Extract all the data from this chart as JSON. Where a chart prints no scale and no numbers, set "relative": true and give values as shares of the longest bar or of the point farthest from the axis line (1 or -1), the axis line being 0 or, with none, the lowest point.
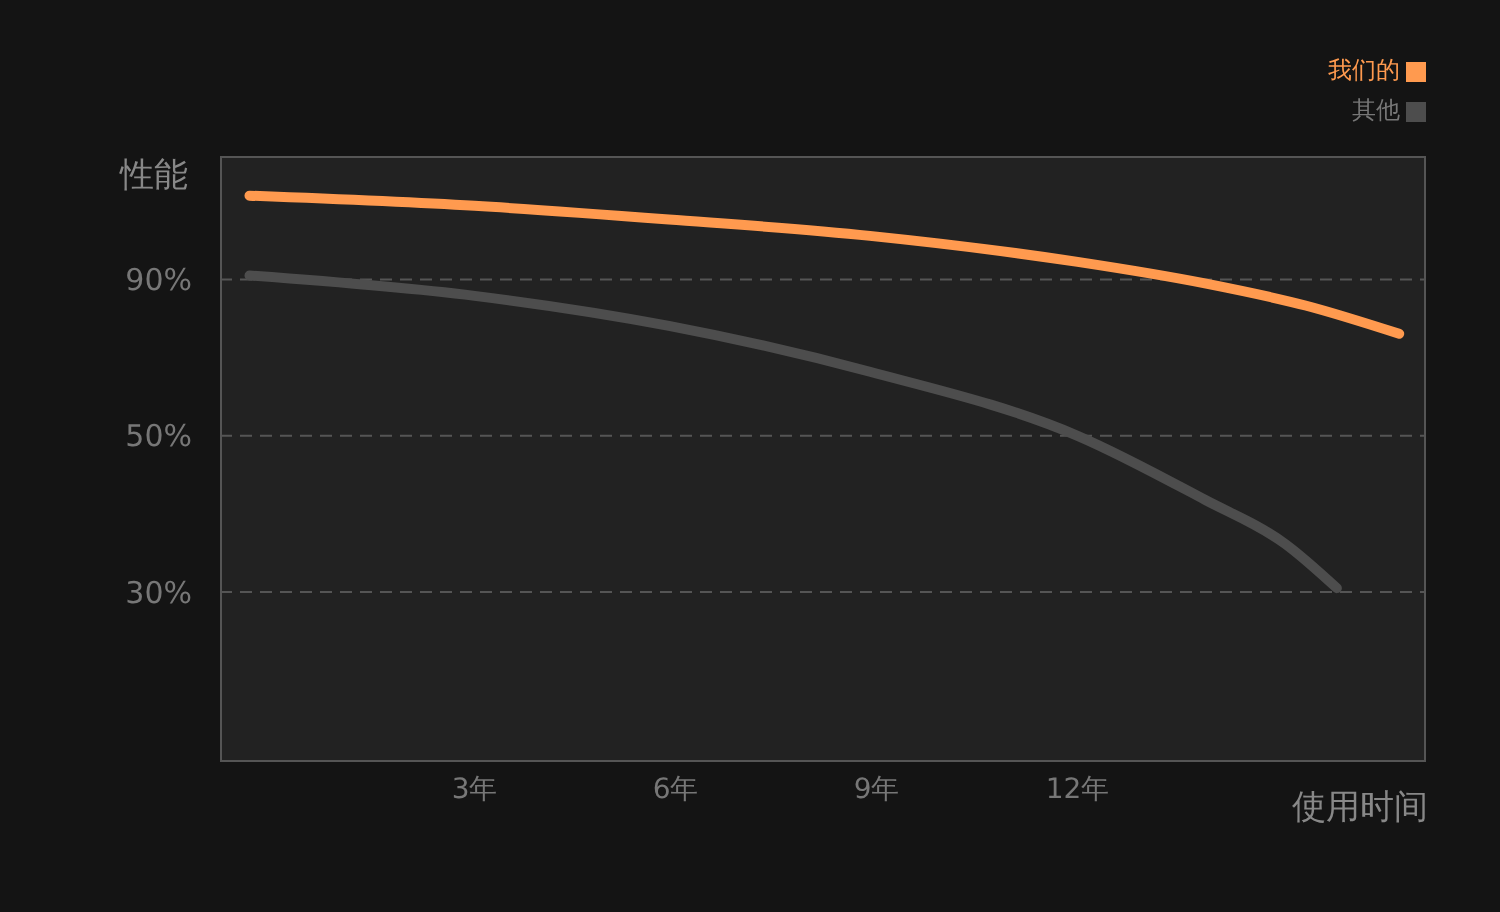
{
  "chart_data": {
    "type": "line",
    "relative": true,
    "ylabel": "性能",
    "xlabel": "使用时间",
    "xlim": [
      -0.8,
      17.2
    ],
    "xticks": [
      {
        "value": 3,
        "label": "3年"
      },
      {
        "value": 6,
        "label": "6年"
      },
      {
        "value": 9,
        "label": "9年"
      },
      {
        "value": 12,
        "label": "12年"
      }
    ],
    "series": [
      {
        "name": "我们的",
        "color": "#ff9a4f",
        "x": [
          -0.36,
          3,
          5.9,
          8.9,
          12,
          13.9,
          15.4,
          16.8
        ],
        "values": [
          1.0,
          0.982,
          0.958,
          0.929,
          0.883,
          0.845,
          0.806,
          0.756
        ]
      },
      {
        "name": "其他",
        "color": "#4d4d4d",
        "x": [
          -0.36,
          3,
          5.9,
          8.9,
          12,
          13.9,
          15.1,
          15.87
        ],
        "values": [
          0.859,
          0.823,
          0.77,
          0.689,
          0.576,
          0.463,
          0.385,
          0.307
        ]
      }
    ],
    "ref_lines": [
      {
        "axis": "y",
        "value": 0.852,
        "color": "#555555",
        "line_style": "dashed"
      },
      {
        "axis": "y",
        "value": 0.576,
        "color": "#555555",
        "line_style": "dashed"
      },
      {
        "axis": "y",
        "value": 0.3,
        "color": "#555555",
        "line_style": "dashed"
      }
    ],
    "annotations": [
      "90%",
      "50%",
      "30%"
    ],
    "legend": "top right",
    "marker": "none",
    "line_style": "solid"
  }
}
